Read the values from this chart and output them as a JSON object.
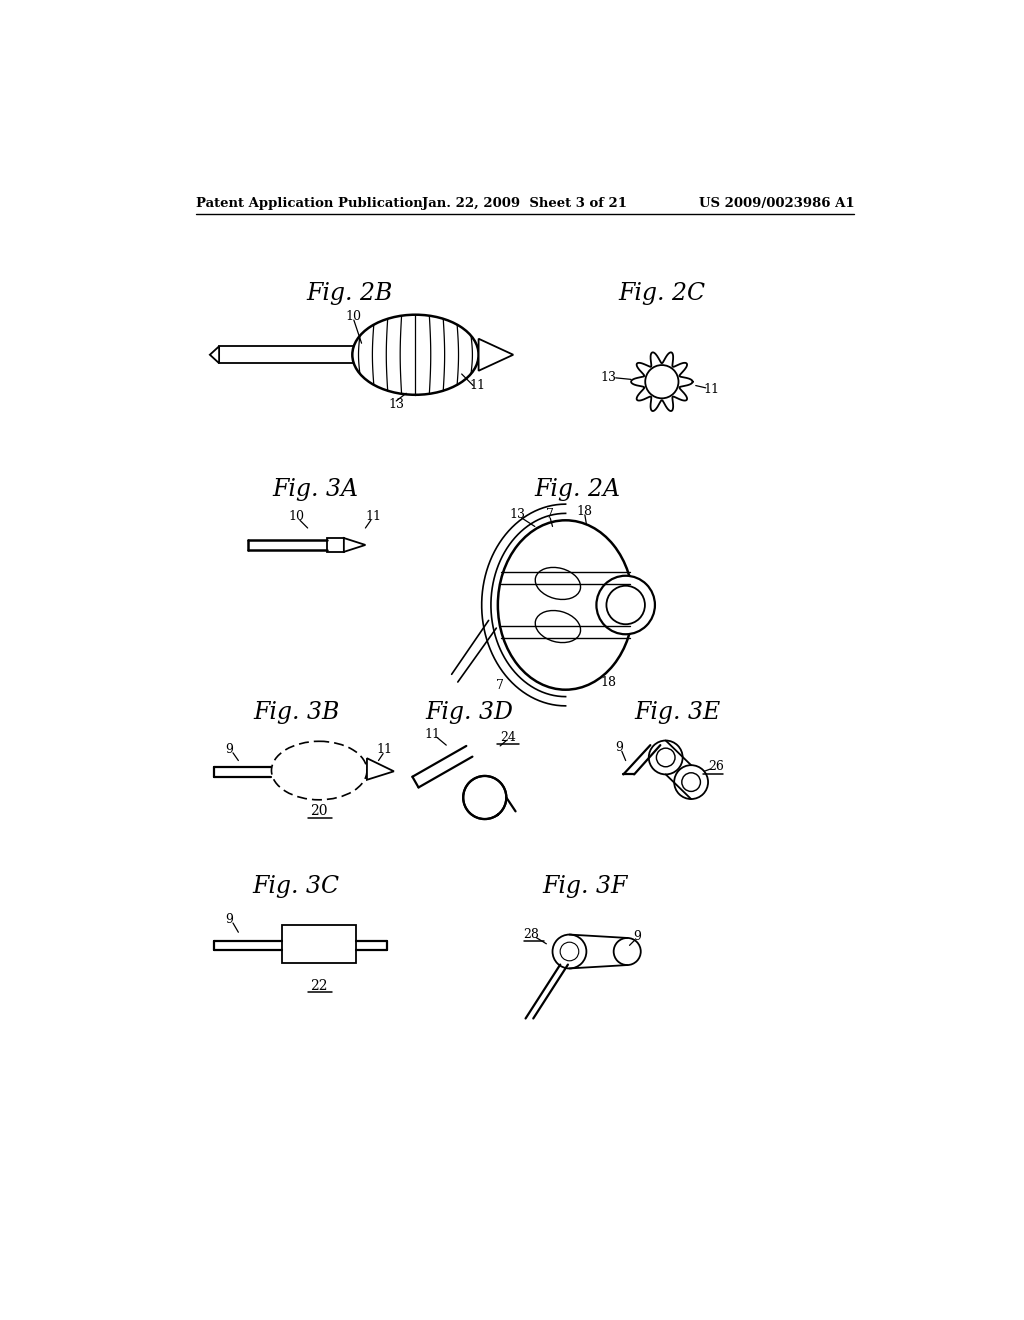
{
  "bg_color": "#ffffff",
  "header_left": "Patent Application Publication",
  "header_mid": "Jan. 22, 2009  Sheet 3 of 21",
  "header_right": "US 2009/0023986 A1",
  "lw_main": 1.3,
  "lw_thin": 0.9
}
